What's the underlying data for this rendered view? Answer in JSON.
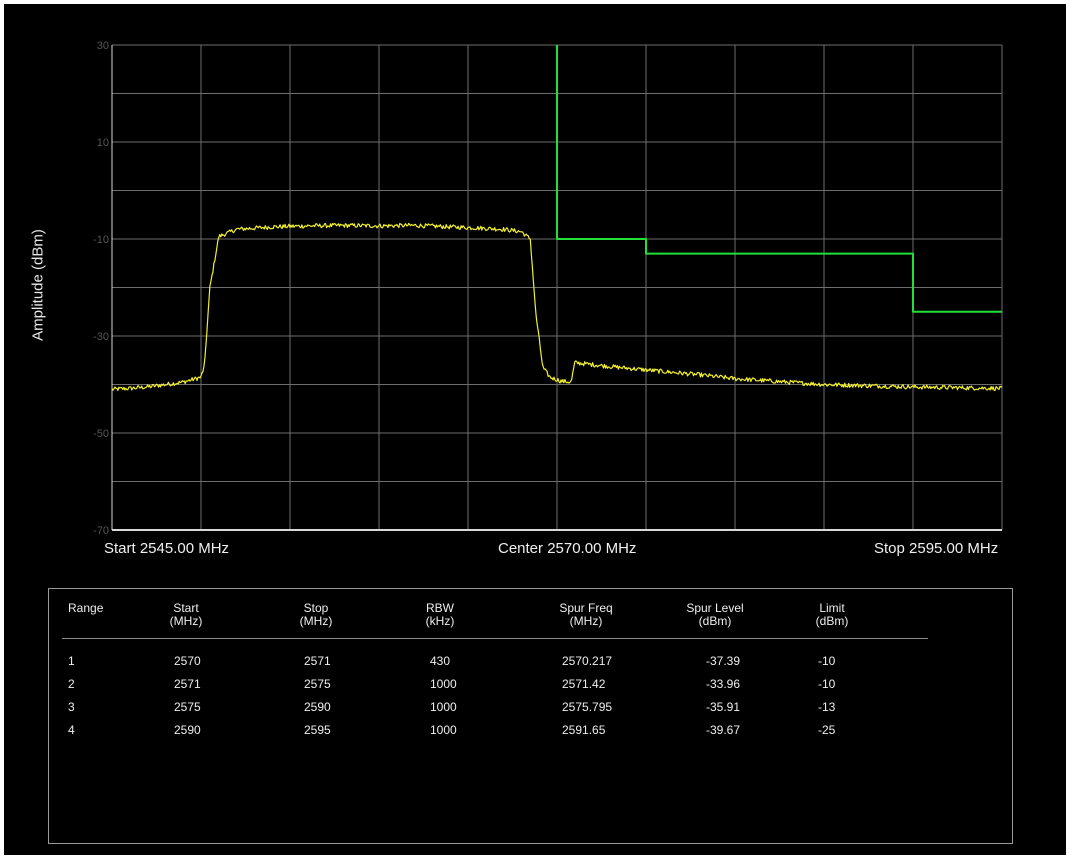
{
  "chart_data": {
    "type": "line",
    "ylabel": "Amplitude (dBm)",
    "xlabel": "",
    "ylim": [
      -70,
      30
    ],
    "xlim": [
      2545.0,
      2595.0
    ],
    "yticks": [
      "30",
      "10",
      "-10",
      "-30",
      "-50",
      "-70"
    ],
    "ytick_values": [
      30,
      10,
      -10,
      -30,
      -50,
      -70
    ],
    "xtick_labels": {
      "start": "Start 2545.00 MHz",
      "center": "Center 2570.00 MHz",
      "stop": "Stop 2595.00 MHz"
    },
    "grid": true,
    "grid_divisions": {
      "x": 10,
      "y": 10
    },
    "series": [
      {
        "color": "#f2ef2e",
        "x": [
          2545.0,
          2546.0,
          2547.0,
          2548.0,
          2549.0,
          2550.0,
          2550.2,
          2550.5,
          2551.0,
          2552.0,
          2554.0,
          2556.0,
          2558.0,
          2560.0,
          2562.0,
          2564.0,
          2566.0,
          2567.0,
          2568.0,
          2568.5,
          2568.8,
          2569.2,
          2569.6,
          2570.0,
          2570.2,
          2570.8,
          2571.0,
          2573.0,
          2575.0,
          2578.0,
          2580.0,
          2585.0,
          2590.0,
          2595.0
        ],
        "y": [
          -41.0,
          -40.8,
          -40.5,
          -40.0,
          -39.5,
          -38.5,
          -36.0,
          -20.0,
          -9.5,
          -8.0,
          -7.5,
          -7.3,
          -7.2,
          -7.3,
          -7.2,
          -7.5,
          -7.8,
          -8.0,
          -8.5,
          -10.0,
          -25.0,
          -36.5,
          -38.5,
          -39.0,
          -39.3,
          -39.5,
          -35.5,
          -36.3,
          -37.0,
          -38.0,
          -38.8,
          -40.0,
          -40.5,
          -40.8
        ]
      },
      {
        "color": "#22e03a",
        "x": [
          2570.0,
          2570.0,
          2575.0,
          2575.0,
          2590.0,
          2590.0,
          2595.0
        ],
        "y": [
          30,
          -10,
          -10,
          -13,
          -13,
          -25,
          -25
        ]
      }
    ]
  },
  "table": {
    "headers": [
      [
        "Range"
      ],
      [
        "Start",
        "(MHz)"
      ],
      [
        "Stop",
        "(MHz)"
      ],
      [
        "RBW",
        "(kHz)"
      ],
      [
        "Spur Freq",
        "(MHz)"
      ],
      [
        "Spur Level",
        "(dBm)"
      ],
      [
        "Limit",
        "(dBm)"
      ]
    ],
    "rows": [
      [
        "1",
        "2570",
        "2571",
        "430",
        "2570.217",
        "-37.39",
        "-10"
      ],
      [
        "2",
        "2571",
        "2575",
        "1000",
        "2571.42",
        "-33.96",
        "-10"
      ],
      [
        "3",
        "2575",
        "2590",
        "1000",
        "2575.795",
        "-35.91",
        "-13"
      ],
      [
        "4",
        "2590",
        "2595",
        "1000",
        "2591.65",
        "-39.67",
        "-25"
      ]
    ]
  }
}
